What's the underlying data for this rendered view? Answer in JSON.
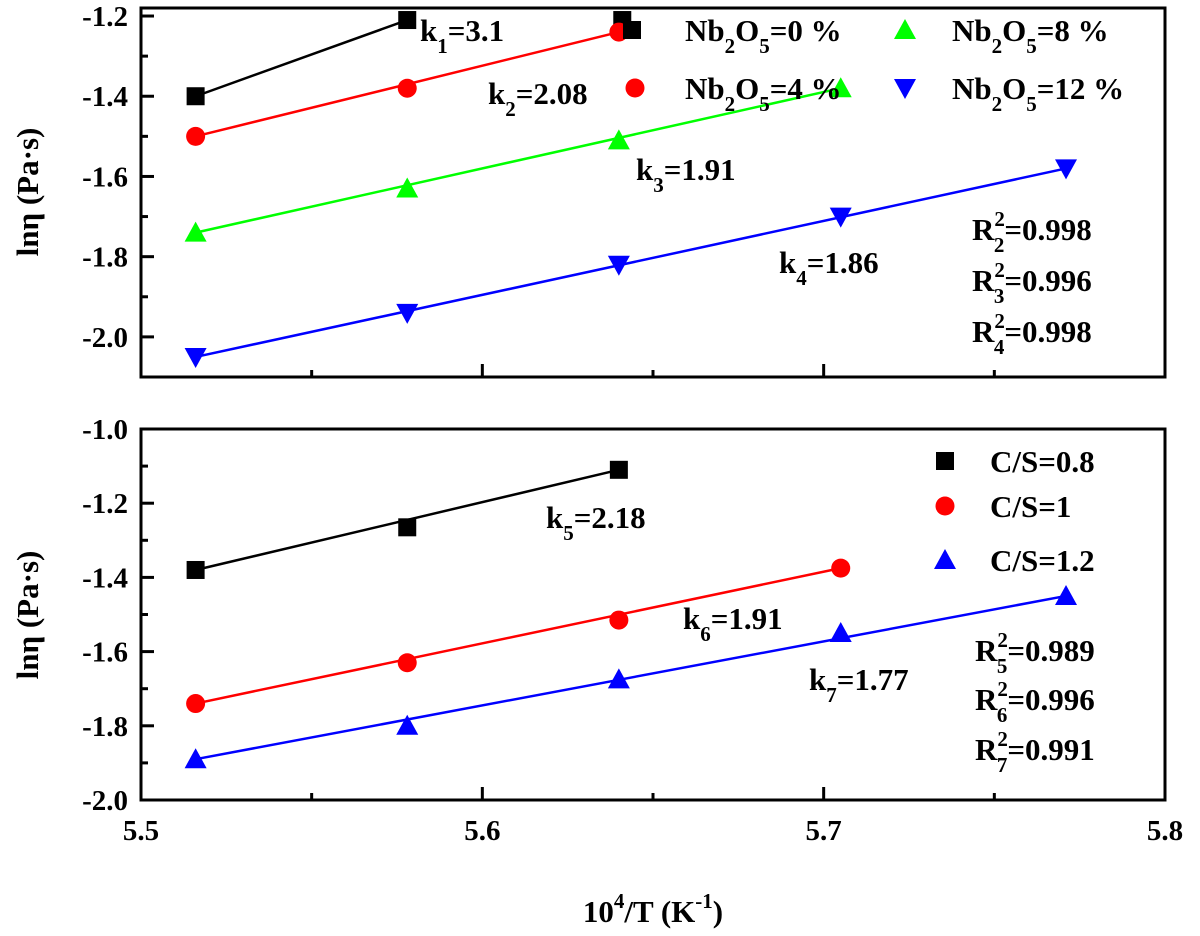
{
  "chart_data": [
    {
      "type": "scatter",
      "panel": "top",
      "xlabel": "",
      "ylabel": "lnη  (Pa·s)",
      "xlim": [
        5.5,
        5.8
      ],
      "ylim": [
        -2.1,
        -1.18
      ],
      "xticks": [],
      "yticks": [
        "-1.2",
        "-1.4",
        "-1.6",
        "-1.8",
        "-2.0"
      ],
      "grid": false,
      "legend_position": "top-right",
      "series": [
        {
          "name": "Nb2O5=0 %",
          "legend_main": "Nb",
          "legend_s1": "2",
          "legend_mid": "O",
          "legend_s2": "5",
          "legend_tail": "=0 %",
          "color": "#000000",
          "marker": "square",
          "x": [
            5.516,
            5.578,
            5.641
          ],
          "y": [
            -1.4,
            -1.21,
            -1.21
          ],
          "fit_x": [
            5.516,
            5.578
          ],
          "fit_y": [
            -1.4,
            -1.21
          ]
        },
        {
          "name": "Nb2O5=4 %",
          "legend_main": "Nb",
          "legend_s1": "2",
          "legend_mid": "O",
          "legend_s2": "5",
          "legend_tail": "=4 %",
          "color": "#ff0000",
          "marker": "circle",
          "x": [
            5.516,
            5.578,
            5.64
          ],
          "y": [
            -1.5,
            -1.38,
            -1.24
          ],
          "fit_x": [
            5.516,
            5.64
          ],
          "fit_y": [
            -1.5,
            -1.24
          ]
        },
        {
          "name": "Nb2O5=8 %",
          "legend_main": "Nb",
          "legend_s1": "2",
          "legend_mid": "O",
          "legend_s2": "5",
          "legend_tail": "=8 %",
          "color": "#00ff00",
          "marker": "triangle-up",
          "x": [
            5.516,
            5.578,
            5.64,
            5.705
          ],
          "y": [
            -1.74,
            -1.63,
            -1.51,
            -1.38
          ],
          "fit_x": [
            5.516,
            5.705
          ],
          "fit_y": [
            -1.74,
            -1.38
          ]
        },
        {
          "name": "Nb2O5=12 %",
          "legend_main": "Nb",
          "legend_s1": "2",
          "legend_mid": "O",
          "legend_s2": "5",
          "legend_tail": "=12 %",
          "color": "#0000ff",
          "marker": "triangle-down",
          "x": [
            5.516,
            5.578,
            5.64,
            5.705,
            5.771
          ],
          "y": [
            -2.05,
            -1.94,
            -1.82,
            -1.7,
            -1.58
          ],
          "fit_x": [
            5.516,
            5.771
          ],
          "fit_y": [
            -2.05,
            -1.58
          ]
        }
      ],
      "annotations": [
        {
          "main": "k",
          "sub": "1",
          "tail": "=3.1"
        },
        {
          "main": "k",
          "sub": "2",
          "tail": "=2.08"
        },
        {
          "main": "k",
          "sub": "3",
          "tail": "=1.91"
        },
        {
          "main": "k",
          "sub": "4",
          "tail": "=1.86"
        },
        {
          "main": "R",
          "sup": "2",
          "sub": "2",
          "tail": "=0.998"
        },
        {
          "main": "R",
          "sup": "2",
          "sub": "3",
          "tail": "=0.996"
        },
        {
          "main": "R",
          "sup": "2",
          "sub": "4",
          "tail": "=0.998"
        }
      ]
    },
    {
      "type": "scatter",
      "panel": "bottom",
      "xlabel_main": "10",
      "xlabel_sup1": "4",
      "xlabel_mid": "/T (K",
      "xlabel_sup2": "-1",
      "xlabel_tail": ")",
      "ylabel": "lnη  (Pa·s)",
      "xlim": [
        5.5,
        5.8
      ],
      "ylim": [
        -2.0,
        -1.0
      ],
      "xticks": [
        "5.5",
        "5.6",
        "5.7",
        "5.8"
      ],
      "yticks": [
        "-1.0",
        "-1.2",
        "-1.4",
        "-1.6",
        "-1.8",
        "-2.0"
      ],
      "grid": false,
      "legend_position": "top-right",
      "series": [
        {
          "name": "C/S=0.8",
          "color": "#000000",
          "marker": "square",
          "x": [
            5.516,
            5.578,
            5.64
          ],
          "y": [
            -1.38,
            -1.265,
            -1.11
          ],
          "fit_x": [
            5.516,
            5.64
          ],
          "fit_y": [
            -1.38,
            -1.11
          ]
        },
        {
          "name": "C/S=1",
          "color": "#ff0000",
          "marker": "circle",
          "x": [
            5.516,
            5.578,
            5.64,
            5.705
          ],
          "y": [
            -1.74,
            -1.63,
            -1.515,
            -1.375
          ],
          "fit_x": [
            5.516,
            5.705
          ],
          "fit_y": [
            -1.74,
            -1.375
          ]
        },
        {
          "name": "C/S=1.2",
          "color": "#0000ff",
          "marker": "triangle-up",
          "x": [
            5.516,
            5.578,
            5.64,
            5.705,
            5.771
          ],
          "y": [
            -1.89,
            -1.8,
            -1.675,
            -1.55,
            -1.45
          ],
          "fit_x": [
            5.516,
            5.771
          ],
          "fit_y": [
            -1.89,
            -1.45
          ]
        }
      ],
      "annotations": [
        {
          "main": "k",
          "sub": "5",
          "tail": "=2.18"
        },
        {
          "main": "k",
          "sub": "6",
          "tail": "=1.91"
        },
        {
          "main": "k",
          "sub": "7",
          "tail": "=1.77"
        },
        {
          "main": "R",
          "sup": "2",
          "sub": "5",
          "tail": "=0.989"
        },
        {
          "main": "R",
          "sup": "2",
          "sub": "6",
          "tail": "=0.996"
        },
        {
          "main": "R",
          "sup": "2",
          "sub": "7",
          "tail": "=0.991"
        }
      ]
    }
  ]
}
